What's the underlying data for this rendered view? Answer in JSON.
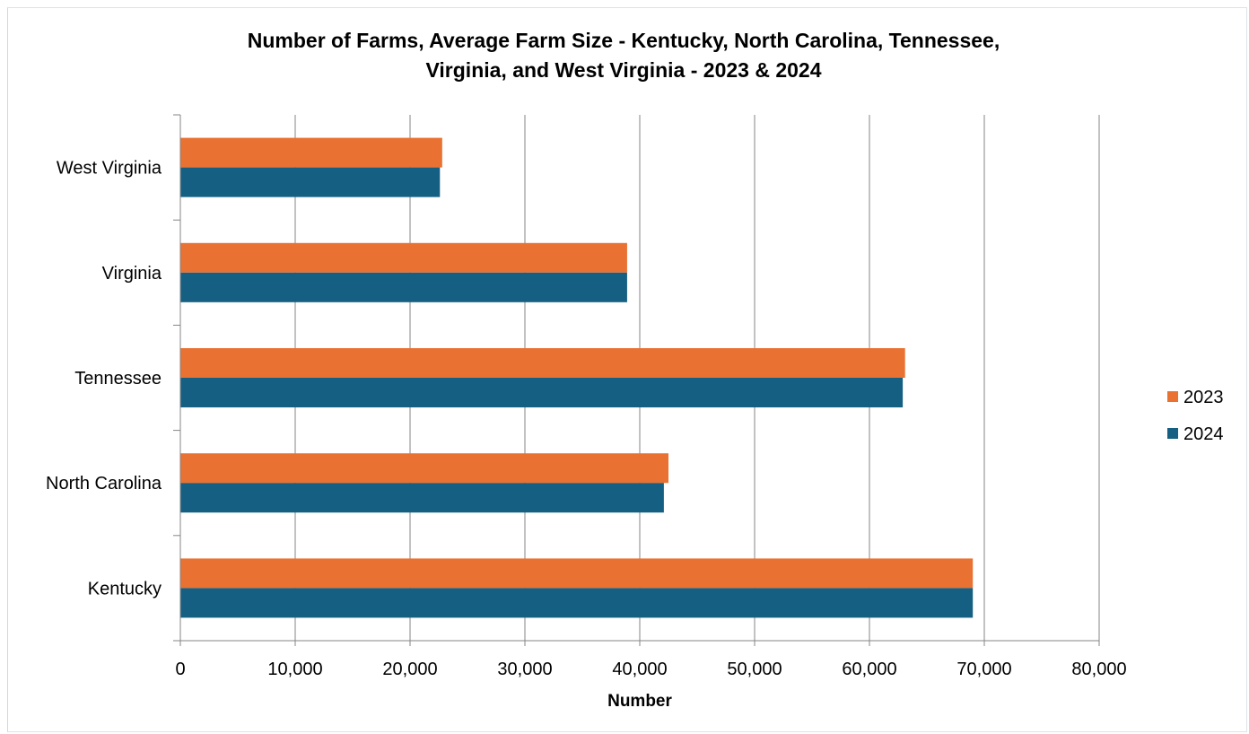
{
  "chart_data": {
    "type": "bar",
    "orientation": "horizontal",
    "title_lines": [
      "Number of Farms, Average Farm Size - Kentucky, North Carolina, Tennessee,",
      "Virginia, and West Virginia - 2023 & 2024"
    ],
    "xlabel": "Number",
    "ylabel": "",
    "xlim": [
      0,
      80000
    ],
    "x_ticks": [
      "0",
      "10,000",
      "20,000",
      "30,000",
      "40,000",
      "50,000",
      "60,000",
      "70,000",
      "80,000"
    ],
    "x_tick_values": [
      0,
      10000,
      20000,
      30000,
      40000,
      50000,
      60000,
      70000,
      80000
    ],
    "categories": [
      "Kentucky",
      "North Carolina",
      "Tennessee",
      "Virginia",
      "West Virginia"
    ],
    "series": [
      {
        "name": "2023",
        "color": "#e97132",
        "values": [
          69000,
          42500,
          63100,
          38900,
          22800
        ]
      },
      {
        "name": "2024",
        "color": "#156082",
        "values": [
          69000,
          42100,
          62900,
          38900,
          22600
        ]
      }
    ],
    "grid": true,
    "legend_position": "right"
  }
}
